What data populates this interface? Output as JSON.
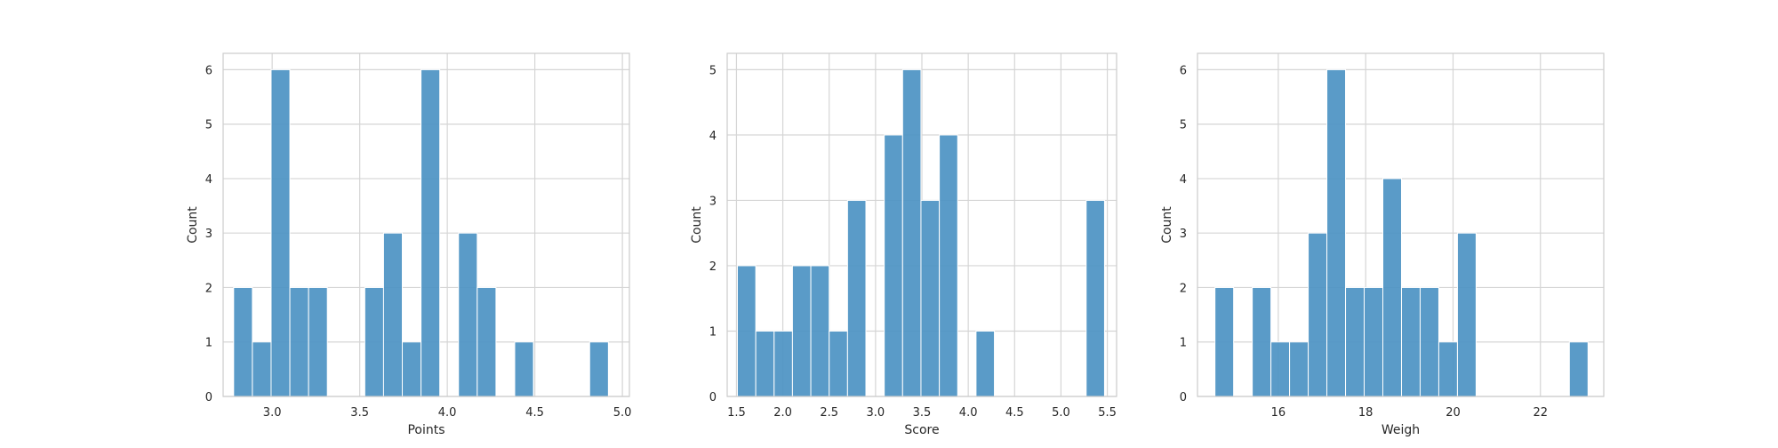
{
  "chart_data": [
    {
      "type": "bar",
      "subtype": "histogram",
      "xlabel": "Points",
      "ylabel": "Count",
      "xlim": [
        2.72,
        5.04
      ],
      "ylim": [
        0,
        6.3
      ],
      "xticks": [
        3.0,
        3.5,
        4.0,
        4.5,
        5.0
      ],
      "xtick_labels": [
        "3.0",
        "3.5",
        "4.0",
        "4.5",
        "5.0"
      ],
      "yticks": [
        0,
        1,
        2,
        3,
        4,
        5,
        6
      ],
      "grid": true,
      "bin_edges": [
        2.78,
        2.887,
        2.994,
        3.101,
        3.208,
        3.315,
        3.422,
        3.529,
        3.636,
        3.743,
        3.85,
        3.957,
        4.064,
        4.171,
        4.278,
        4.385,
        4.492,
        4.599,
        4.706,
        4.813,
        4.92
      ],
      "counts": [
        2,
        1,
        6,
        2,
        2,
        0,
        0,
        2,
        3,
        1,
        6,
        0,
        3,
        2,
        0,
        1,
        0,
        0,
        0,
        1
      ],
      "color": "#4c93c3"
    },
    {
      "type": "bar",
      "subtype": "histogram",
      "xlabel": "Score",
      "ylabel": "Count",
      "xlim": [
        1.4,
        5.6
      ],
      "ylim": [
        0,
        5.25
      ],
      "xticks": [
        1.5,
        2.0,
        2.5,
        3.0,
        3.5,
        4.0,
        4.5,
        5.0,
        5.5
      ],
      "xtick_labels": [
        "1.5",
        "2.0",
        "2.5",
        "3.0",
        "3.5",
        "4.0",
        "4.5",
        "5.0",
        "5.5"
      ],
      "yticks": [
        0,
        1,
        2,
        3,
        4,
        5
      ],
      "grid": true,
      "bin_edges": [
        1.51,
        1.708,
        1.906,
        2.104,
        2.302,
        2.5,
        2.698,
        2.896,
        3.094,
        3.292,
        3.49,
        3.688,
        3.886,
        4.084,
        4.282,
        4.48,
        4.678,
        4.876,
        5.074,
        5.272,
        5.47
      ],
      "counts": [
        2,
        1,
        1,
        2,
        2,
        1,
        3,
        0,
        4,
        5,
        3,
        4,
        0,
        1,
        0,
        0,
        0,
        0,
        0,
        3
      ],
      "color": "#4c93c3"
    },
    {
      "type": "bar",
      "subtype": "histogram",
      "xlabel": "Weigh",
      "ylabel": "Count",
      "xlim": [
        14.15,
        23.45
      ],
      "ylim": [
        0,
        6.3
      ],
      "xticks": [
        16,
        18,
        20,
        22
      ],
      "xtick_labels": [
        "16",
        "18",
        "20",
        "22"
      ],
      "yticks": [
        0,
        1,
        2,
        3,
        4,
        5,
        6
      ],
      "grid": true,
      "bin_edges": [
        14.55,
        14.977,
        15.404,
        15.831,
        16.258,
        16.685,
        17.112,
        17.539,
        17.966,
        18.393,
        18.82,
        19.247,
        19.674,
        20.101,
        20.528,
        20.955,
        21.382,
        21.809,
        22.236,
        22.663,
        23.09
      ],
      "counts": [
        2,
        0,
        2,
        1,
        1,
        3,
        6,
        2,
        2,
        4,
        2,
        2,
        1,
        3,
        0,
        0,
        0,
        0,
        0,
        1
      ],
      "color": "#4c93c3"
    }
  ]
}
